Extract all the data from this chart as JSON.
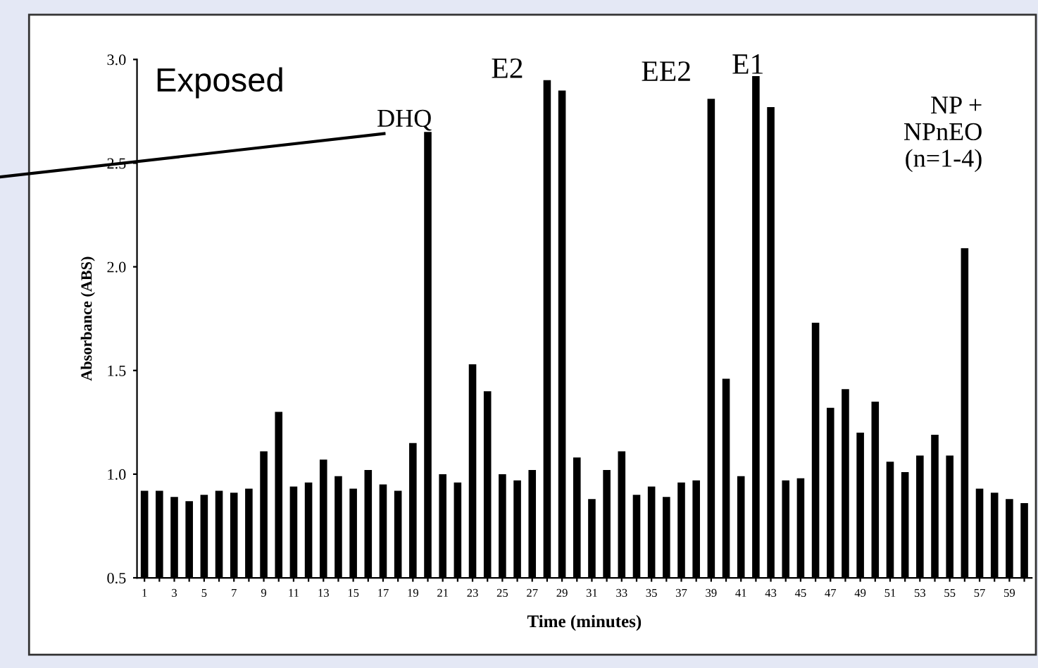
{
  "chart_data": {
    "type": "bar",
    "xlabel": "Time (minutes)",
    "ylabel": "Absorbance (ABS)",
    "x": [
      1,
      2,
      3,
      4,
      5,
      6,
      7,
      8,
      9,
      10,
      11,
      12,
      13,
      14,
      15,
      16,
      17,
      18,
      19,
      20,
      21,
      22,
      23,
      24,
      25,
      26,
      27,
      28,
      29,
      30,
      31,
      32,
      33,
      34,
      35,
      36,
      37,
      38,
      39,
      40,
      41,
      42,
      43,
      44,
      45,
      46,
      47,
      48,
      49,
      50,
      51,
      52,
      53,
      54,
      55,
      56,
      57,
      58,
      59,
      60
    ],
    "values": [
      0.92,
      0.92,
      0.89,
      0.87,
      0.9,
      0.92,
      0.91,
      0.93,
      1.11,
      1.3,
      0.94,
      0.96,
      1.07,
      0.99,
      0.93,
      1.02,
      0.95,
      0.92,
      1.15,
      2.65,
      1.0,
      0.96,
      1.53,
      1.4,
      1.0,
      0.97,
      1.02,
      2.9,
      2.85,
      1.08,
      0.88,
      1.02,
      1.11,
      0.9,
      0.94,
      0.89,
      0.96,
      0.97,
      2.81,
      1.46,
      0.99,
      2.92,
      2.77,
      0.97,
      0.98,
      1.73,
      1.32,
      1.41,
      1.2,
      1.35,
      1.06,
      1.01,
      1.09,
      1.19,
      1.09,
      2.09,
      0.93,
      0.91,
      0.88,
      0.86
    ],
    "color": "#000000",
    "xlim": [
      0.5,
      60.5
    ],
    "xticks": [
      1,
      {
        "value": 2,
        "label": null
      },
      3,
      {
        "value": 4,
        "label": null
      },
      5,
      {
        "value": 6,
        "label": null
      },
      7,
      {
        "value": 8,
        "label": null
      },
      9,
      {
        "value": 10,
        "label": null
      },
      11,
      {
        "value": 12,
        "label": null
      },
      13,
      {
        "value": 14,
        "label": null
      },
      15,
      {
        "value": 16,
        "label": null
      },
      17,
      {
        "value": 18,
        "label": null
      },
      19,
      {
        "value": 20,
        "label": null
      },
      21,
      {
        "value": 22,
        "label": null
      },
      23,
      {
        "value": 24,
        "label": null
      },
      25,
      {
        "value": 26,
        "label": null
      },
      27,
      {
        "value": 28,
        "label": null
      },
      29,
      {
        "value": 30,
        "label": null
      },
      31,
      {
        "value": 32,
        "label": null
      },
      33,
      {
        "value": 34,
        "label": null
      },
      35,
      {
        "value": 36,
        "label": null
      },
      37,
      {
        "value": 38,
        "label": null
      },
      39,
      {
        "value": 40,
        "label": null
      },
      41,
      {
        "value": 42,
        "label": null
      },
      43,
      {
        "value": 44,
        "label": null
      },
      45,
      {
        "value": 46,
        "label": null
      },
      47,
      {
        "value": 48,
        "label": null
      },
      49,
      {
        "value": 50,
        "label": null
      },
      51,
      {
        "value": 52,
        "label": null
      },
      53,
      {
        "value": 54,
        "label": null
      },
      55,
      {
        "value": 56,
        "label": null
      },
      57,
      {
        "value": 58,
        "label": null
      },
      59,
      {
        "value": 60,
        "label": null
      }
    ],
    "ylim": [
      0.5,
      3.0
    ],
    "yticks": [
      {
        "value": 0.5,
        "label": "0.5"
      },
      {
        "value": 1.0,
        "label": "1.0"
      },
      {
        "value": 1.5,
        "label": "1.5"
      },
      {
        "value": 2.0,
        "label": "2.0"
      },
      {
        "value": 2.5,
        "label": "2.5"
      },
      {
        "value": 3.0,
        "label": "3.0"
      }
    ],
    "annotations": [
      "Exposed",
      {
        "text": "DHQ",
        "x": 20,
        "y": 2.65
      },
      {
        "text": "E2",
        "x": 28,
        "y": 2.9
      },
      {
        "text": "EE2",
        "x": 39,
        "y": 2.81
      },
      {
        "text": "E1",
        "x": 42,
        "y": 2.92
      },
      "NP +\nNPnEO\n(n=1-4)"
    ]
  }
}
